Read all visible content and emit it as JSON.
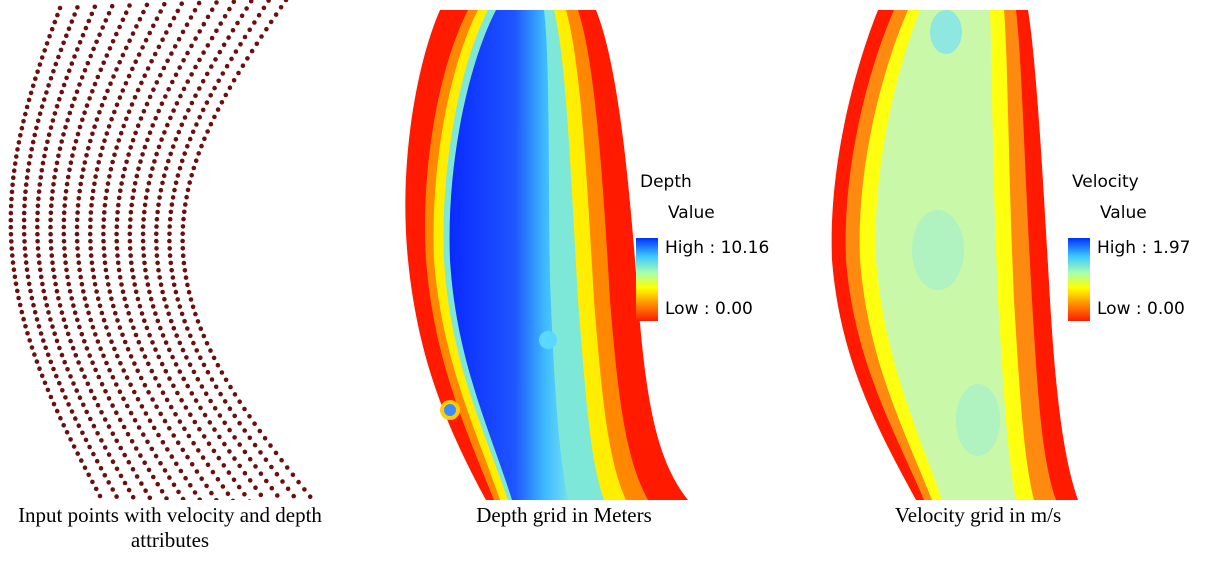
{
  "panels": [
    {
      "caption": "Input points with velocity and depth attributes",
      "layer": "input-points",
      "point_color": "#6b0f0f"
    },
    {
      "caption": "Depth grid in Meters",
      "layer": "depth-grid",
      "legend": {
        "title": "Depth",
        "subtitle": "Value",
        "high_label": "High : 10.16",
        "low_label": "Low : 0.00"
      }
    },
    {
      "caption": "Velocity grid in m/s",
      "layer": "velocity-grid",
      "legend": {
        "title": "Velocity",
        "subtitle": "Value",
        "high_label": "High : 1.97",
        "low_label": "Low : 0.00"
      }
    }
  ],
  "colors": {
    "ramp_high": "#0030ff",
    "ramp_mid": "#ffff00",
    "ramp_low": "#ff1a00",
    "points": "#6b0f0f"
  }
}
